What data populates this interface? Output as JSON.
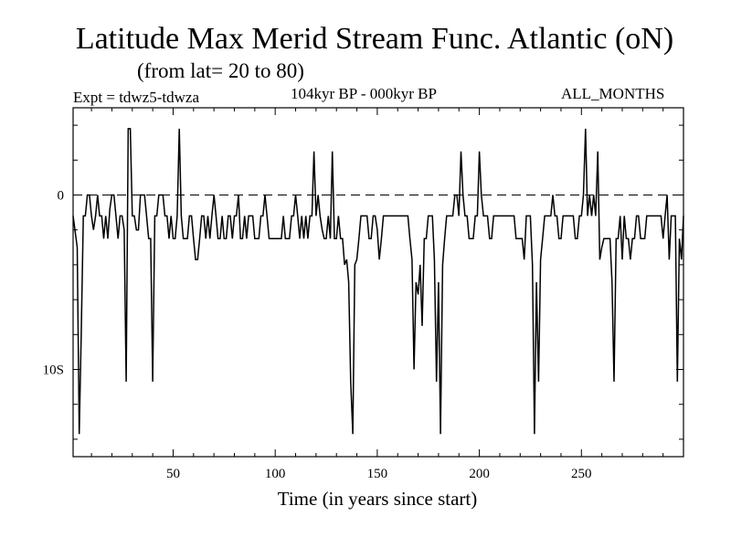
{
  "header": {
    "title": "Latitude Max Merid Stream Func. Atlantic (oN)",
    "subtitle": "(from lat= 20 to 80)",
    "expt": "Expt = tdwz5-tdwza",
    "period": "104kyr BP - 000kyr BP",
    "months": "ALL_MONTHS"
  },
  "chart_data": {
    "type": "line",
    "title": "Latitude Max Merid Stream Func. Atlantic (oN)",
    "xlabel": "Time (in years since start)",
    "ylabel": "",
    "xlim": [
      1,
      300
    ],
    "ylim": [
      -15,
      5
    ],
    "x_ticks": [
      {
        "value": 50,
        "label": "50"
      },
      {
        "value": 100,
        "label": "100"
      },
      {
        "value": 150,
        "label": "150"
      },
      {
        "value": 200,
        "label": "200"
      },
      {
        "value": 250,
        "label": "250"
      }
    ],
    "y_ticks": [
      {
        "value": 0,
        "label": "0"
      },
      {
        "value": -10,
        "label": "10S"
      }
    ],
    "reference_line": {
      "y": 0,
      "style": "dashed"
    },
    "series": [
      {
        "values": [
          [
            1,
            -1.2
          ],
          [
            3,
            -3
          ],
          [
            4,
            -13.7
          ],
          [
            5,
            -8
          ],
          [
            6,
            -1.2
          ],
          [
            7,
            -1.2
          ],
          [
            8,
            0
          ],
          [
            9,
            0
          ],
          [
            10,
            -1.2
          ],
          [
            11,
            -2
          ],
          [
            12,
            -1.2
          ],
          [
            13,
            0
          ],
          [
            14,
            -1.2
          ],
          [
            15,
            -1.2
          ],
          [
            16,
            -2.5
          ],
          [
            17,
            -1.2
          ],
          [
            18,
            -2.5
          ],
          [
            19,
            -0.8
          ],
          [
            20,
            0
          ],
          [
            21,
            0
          ],
          [
            22,
            -1.2
          ],
          [
            23,
            -2.5
          ],
          [
            24,
            -1.2
          ],
          [
            25,
            -1.2
          ],
          [
            26,
            -2
          ],
          [
            27,
            -10.7
          ],
          [
            28,
            3.8
          ],
          [
            29,
            3.8
          ],
          [
            30,
            -1.2
          ],
          [
            31,
            -1.2
          ],
          [
            32,
            -2
          ],
          [
            33,
            -2
          ],
          [
            34,
            0
          ],
          [
            35,
            0
          ],
          [
            36,
            0
          ],
          [
            37,
            -1.2
          ],
          [
            38,
            -2.5
          ],
          [
            39,
            -2.5
          ],
          [
            40,
            -10.7
          ],
          [
            41,
            -1.2
          ],
          [
            42,
            -1.2
          ],
          [
            43,
            0
          ],
          [
            44,
            0
          ],
          [
            45,
            0
          ],
          [
            46,
            -1.2
          ],
          [
            47,
            -1.2
          ],
          [
            48,
            -2.5
          ],
          [
            49,
            -1.2
          ],
          [
            50,
            -2.5
          ],
          [
            51,
            -2.5
          ],
          [
            52,
            -1.2
          ],
          [
            53,
            3.8
          ],
          [
            54,
            -1.2
          ],
          [
            55,
            -2.5
          ],
          [
            56,
            -2.5
          ],
          [
            57,
            -2.5
          ],
          [
            58,
            -1.2
          ],
          [
            59,
            -1.2
          ],
          [
            60,
            -2.5
          ],
          [
            61,
            -3.7
          ],
          [
            62,
            -3.7
          ],
          [
            63,
            -2.5
          ],
          [
            64,
            -1.2
          ],
          [
            65,
            -1.2
          ],
          [
            66,
            -2.5
          ],
          [
            67,
            -1.2
          ],
          [
            68,
            -2.5
          ],
          [
            69,
            -1.2
          ],
          [
            70,
            0
          ],
          [
            71,
            -1.2
          ],
          [
            72,
            -2.5
          ],
          [
            73,
            -2.5
          ],
          [
            74,
            -1.2
          ],
          [
            75,
            -2.5
          ],
          [
            76,
            -2.5
          ],
          [
            77,
            -1.2
          ],
          [
            78,
            -1.2
          ],
          [
            79,
            -2.5
          ],
          [
            80,
            -1.2
          ],
          [
            81,
            -1.2
          ],
          [
            82,
            0
          ],
          [
            83,
            -2.5
          ],
          [
            84,
            -2.5
          ],
          [
            85,
            -1.2
          ],
          [
            86,
            -2.5
          ],
          [
            87,
            -1.2
          ],
          [
            88,
            -1.2
          ],
          [
            89,
            -1.2
          ],
          [
            90,
            -2.5
          ],
          [
            91,
            -2.5
          ],
          [
            92,
            -2.5
          ],
          [
            93,
            -1.2
          ],
          [
            94,
            -1.2
          ],
          [
            95,
            0
          ],
          [
            96,
            -1.2
          ],
          [
            97,
            -2.5
          ],
          [
            98,
            -2.5
          ],
          [
            99,
            -2.5
          ],
          [
            100,
            -2.5
          ],
          [
            101,
            -2.5
          ],
          [
            102,
            -2.5
          ],
          [
            103,
            -2.5
          ],
          [
            104,
            -1.2
          ],
          [
            105,
            -2.5
          ],
          [
            106,
            -2.5
          ],
          [
            107,
            -2.5
          ],
          [
            108,
            -1.2
          ],
          [
            109,
            -1.2
          ],
          [
            110,
            0
          ],
          [
            111,
            -1.2
          ],
          [
            112,
            -2.5
          ],
          [
            113,
            -1.2
          ],
          [
            114,
            -2.5
          ],
          [
            115,
            -1.2
          ],
          [
            116,
            -2.5
          ],
          [
            117,
            -1.2
          ],
          [
            118,
            -1.2
          ],
          [
            119,
            2.5
          ],
          [
            120,
            -1.2
          ],
          [
            121,
            0
          ],
          [
            122,
            -1.2
          ],
          [
            123,
            -2
          ],
          [
            124,
            -2.5
          ],
          [
            125,
            -2.5
          ],
          [
            126,
            -1.2
          ],
          [
            127,
            -2.5
          ],
          [
            128,
            2.5
          ],
          [
            129,
            -2.5
          ],
          [
            130,
            -2.5
          ],
          [
            131,
            -1.2
          ],
          [
            132,
            -2.5
          ],
          [
            133,
            -2.5
          ],
          [
            134,
            -4
          ],
          [
            135,
            -3.7
          ],
          [
            136,
            -5
          ],
          [
            137,
            -10.7
          ],
          [
            138,
            -13.7
          ],
          [
            139,
            -4
          ],
          [
            140,
            -3.7
          ],
          [
            141,
            -2.5
          ],
          [
            142,
            -1.2
          ],
          [
            143,
            -1.2
          ],
          [
            144,
            -1.2
          ],
          [
            145,
            -1.2
          ],
          [
            146,
            -2.5
          ],
          [
            147,
            -2.5
          ],
          [
            148,
            -1.2
          ],
          [
            149,
            -1.2
          ],
          [
            150,
            -2
          ],
          [
            151,
            -3.7
          ],
          [
            152,
            -2.5
          ],
          [
            153,
            -1.2
          ],
          [
            154,
            -1.2
          ],
          [
            155,
            -1.2
          ],
          [
            156,
            -1.2
          ],
          [
            157,
            -1.2
          ],
          [
            158,
            -1.2
          ],
          [
            159,
            -1.2
          ],
          [
            160,
            -1.2
          ],
          [
            161,
            -1.2
          ],
          [
            162,
            -1.2
          ],
          [
            163,
            -1.2
          ],
          [
            164,
            -1.2
          ],
          [
            165,
            -1.2
          ],
          [
            166,
            -2.5
          ],
          [
            167,
            -3.7
          ],
          [
            168,
            -10
          ],
          [
            169,
            -5
          ],
          [
            170,
            -5.7
          ],
          [
            171,
            -4
          ],
          [
            172,
            -7.5
          ],
          [
            173,
            -2.5
          ],
          [
            174,
            -2.5
          ],
          [
            175,
            -1.2
          ],
          [
            176,
            -1.2
          ],
          [
            177,
            -1.2
          ],
          [
            178,
            -3.7
          ],
          [
            179,
            -10.7
          ],
          [
            180,
            -5
          ],
          [
            181,
            -13.7
          ],
          [
            182,
            -4
          ],
          [
            183,
            -2.5
          ],
          [
            184,
            -1.2
          ],
          [
            185,
            -1.2
          ],
          [
            186,
            -1.2
          ],
          [
            187,
            -1.2
          ],
          [
            188,
            0
          ],
          [
            189,
            0
          ],
          [
            190,
            -1.2
          ],
          [
            191,
            2.5
          ],
          [
            192,
            0
          ],
          [
            193,
            -1.2
          ],
          [
            194,
            -1.2
          ],
          [
            195,
            -2.5
          ],
          [
            196,
            -2.5
          ],
          [
            197,
            -2.5
          ],
          [
            198,
            -1.2
          ],
          [
            199,
            -1.2
          ],
          [
            200,
            2.5
          ],
          [
            201,
            0
          ],
          [
            202,
            -1.2
          ],
          [
            203,
            -1.2
          ],
          [
            204,
            -1.2
          ],
          [
            205,
            -2.5
          ],
          [
            206,
            -2.5
          ],
          [
            207,
            -1.2
          ],
          [
            208,
            -1.2
          ],
          [
            209,
            -1.2
          ],
          [
            210,
            -1.2
          ],
          [
            211,
            -1.2
          ],
          [
            212,
            -1.2
          ],
          [
            213,
            -1.2
          ],
          [
            214,
            -1.2
          ],
          [
            215,
            -1.2
          ],
          [
            216,
            -1.2
          ],
          [
            217,
            -1.2
          ],
          [
            218,
            -2.5
          ],
          [
            219,
            -2.5
          ],
          [
            220,
            -2.5
          ],
          [
            221,
            -2.5
          ],
          [
            222,
            -3.7
          ],
          [
            223,
            -1.2
          ],
          [
            224,
            -1.2
          ],
          [
            225,
            -1.2
          ],
          [
            226,
            -4
          ],
          [
            227,
            -13.7
          ],
          [
            228,
            -5
          ],
          [
            229,
            -10.7
          ],
          [
            230,
            -3.7
          ],
          [
            231,
            -2.5
          ],
          [
            232,
            -1.2
          ],
          [
            233,
            -1.2
          ],
          [
            234,
            -1.2
          ],
          [
            235,
            -1.2
          ],
          [
            236,
            0
          ],
          [
            237,
            -1.2
          ],
          [
            238,
            -1.2
          ],
          [
            239,
            -2.5
          ],
          [
            240,
            -2.5
          ],
          [
            241,
            -1.2
          ],
          [
            242,
            -1.2
          ],
          [
            243,
            -1.2
          ],
          [
            244,
            -1.2
          ],
          [
            245,
            -1.2
          ],
          [
            246,
            -1.2
          ],
          [
            247,
            -2.5
          ],
          [
            248,
            -2.5
          ],
          [
            249,
            -1.2
          ],
          [
            250,
            -1.2
          ],
          [
            251,
            0
          ],
          [
            252,
            3.8
          ],
          [
            253,
            -1.2
          ],
          [
            254,
            0
          ],
          [
            255,
            -1.2
          ],
          [
            256,
            0
          ],
          [
            257,
            -1.2
          ],
          [
            258,
            2.5
          ],
          [
            259,
            -3.7
          ],
          [
            260,
            -3
          ],
          [
            261,
            -2.5
          ],
          [
            262,
            -2.5
          ],
          [
            263,
            -2.5
          ],
          [
            264,
            -2.5
          ],
          [
            265,
            -5
          ],
          [
            266,
            -10.7
          ],
          [
            267,
            -2.5
          ],
          [
            268,
            -2.5
          ],
          [
            269,
            -1.2
          ],
          [
            270,
            -3.7
          ],
          [
            271,
            -1.2
          ],
          [
            272,
            -2.5
          ],
          [
            273,
            -2.5
          ],
          [
            274,
            -3.7
          ],
          [
            275,
            -2.5
          ],
          [
            276,
            -2.5
          ],
          [
            277,
            -1.2
          ],
          [
            278,
            -1.2
          ],
          [
            279,
            -2.5
          ],
          [
            280,
            -2.5
          ],
          [
            281,
            -2.5
          ],
          [
            282,
            -1.2
          ],
          [
            283,
            -1.2
          ],
          [
            284,
            -1.2
          ],
          [
            285,
            -1.2
          ],
          [
            286,
            -1.2
          ],
          [
            287,
            -1.2
          ],
          [
            288,
            -1.2
          ],
          [
            289,
            -1.2
          ],
          [
            290,
            -2.5
          ],
          [
            291,
            -1.2
          ],
          [
            292,
            0
          ],
          [
            293,
            -3.7
          ],
          [
            294,
            -1.2
          ],
          [
            295,
            -1.2
          ],
          [
            296,
            -1.2
          ],
          [
            297,
            -10.7
          ],
          [
            298,
            -2.5
          ],
          [
            299,
            -3.7
          ],
          [
            300,
            -1.2
          ]
        ]
      }
    ]
  }
}
